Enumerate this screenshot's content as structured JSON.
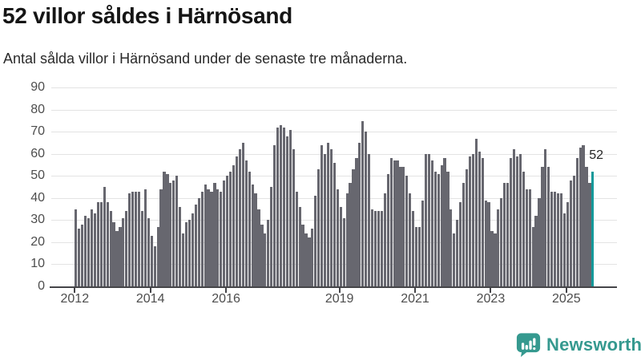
{
  "header": {
    "title": "52 villor såldes i Härnösand",
    "subtitle": "Antal sålda villor i Härnösand under de senaste tre månaderna."
  },
  "chart_data": {
    "type": "bar",
    "interval": "monthly",
    "values": [
      35,
      26,
      28,
      32,
      31,
      35,
      33,
      38,
      38,
      45,
      38,
      34,
      29,
      25,
      27,
      31,
      34,
      42,
      43,
      43,
      43,
      34,
      44,
      31,
      23,
      18,
      27,
      44,
      52,
      51,
      47,
      48,
      50,
      36,
      24,
      29,
      30,
      33,
      37,
      40,
      43,
      46,
      44,
      43,
      47,
      44,
      43,
      48,
      50,
      52,
      55,
      59,
      62,
      65,
      57,
      52,
      46,
      42,
      35,
      28,
      24,
      30,
      45,
      64,
      72,
      73,
      72,
      68,
      71,
      62,
      43,
      36,
      28,
      24,
      22,
      26,
      41,
      53,
      64,
      60,
      65,
      62,
      56,
      44,
      36,
      31,
      42,
      47,
      53,
      58,
      65,
      75,
      70,
      60,
      35,
      34,
      34,
      34,
      42,
      51,
      58,
      57,
      57,
      54,
      54,
      50,
      42,
      34,
      27,
      27,
      39,
      60,
      60,
      57,
      52,
      51,
      55,
      58,
      52,
      35,
      24,
      30,
      38,
      47,
      53,
      59,
      60,
      67,
      61,
      58,
      39,
      38,
      25,
      24,
      35,
      40,
      47,
      47,
      58,
      62,
      59,
      60,
      52,
      44,
      44,
      27,
      32,
      40,
      54,
      62,
      54,
      43,
      43,
      42,
      42,
      33,
      38,
      48,
      50,
      58,
      63,
      64,
      54,
      47,
      52
    ],
    "ylim": [
      0,
      90
    ],
    "yticks": [
      0,
      10,
      20,
      30,
      40,
      50,
      60,
      70,
      80,
      90
    ],
    "xticks": [
      {
        "label": "2012",
        "month_index": 0
      },
      {
        "label": "2014",
        "month_index": 24
      },
      {
        "label": "2016",
        "month_index": 48
      },
      {
        "label": "2019",
        "month_index": 84
      },
      {
        "label": "2021",
        "month_index": 108
      },
      {
        "label": "2023",
        "month_index": 132
      },
      {
        "label": "2025",
        "month_index": 156
      }
    ],
    "grid": true,
    "legend": false,
    "bar_color": "#67676f",
    "highlight_color": "#12999a",
    "highlight_index": 164,
    "annotation": {
      "text": "52",
      "index": 164
    }
  },
  "footer": {
    "brand": "Newsworthy",
    "brand_color": "#35998f",
    "logo_icon": "newsworthy-speech-bubble-bar-chart-icon"
  }
}
